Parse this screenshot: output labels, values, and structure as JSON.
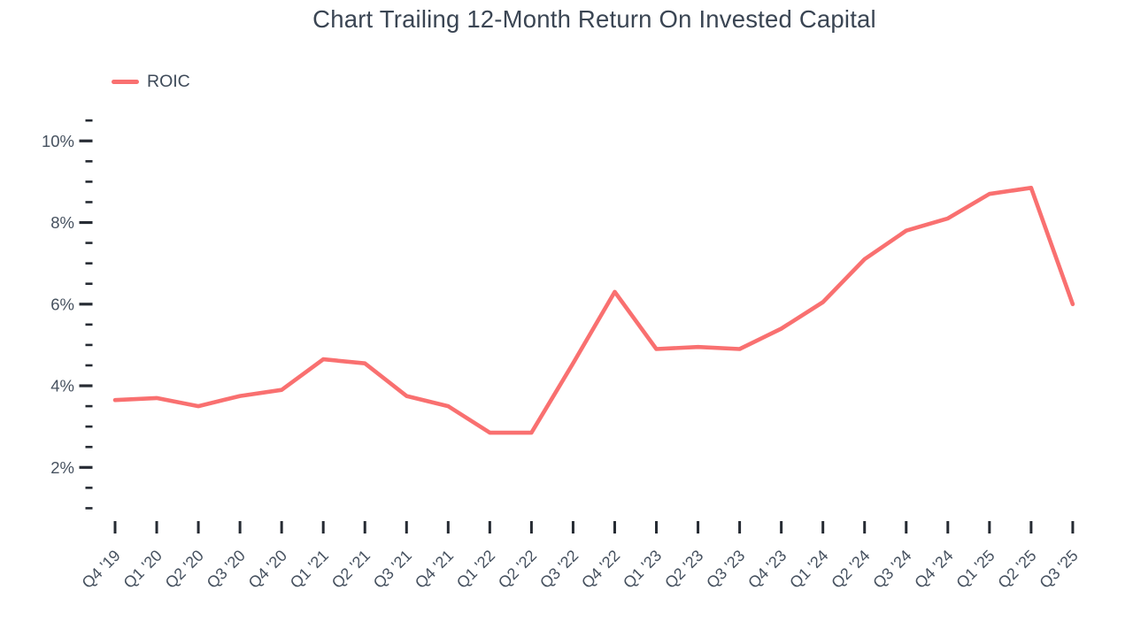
{
  "title": "Chart Trailing 12-Month Return On Invested Capital",
  "legend": {
    "items": [
      {
        "label": "ROIC",
        "color": "#F97070"
      }
    ]
  },
  "colors": {
    "line": "#F97070",
    "title_text": "#3a4553",
    "axis_label_text": "#46515f",
    "tick_mark": "#262b33",
    "background": "#ffffff"
  },
  "chart_data": {
    "type": "line",
    "title": "Chart Trailing 12-Month Return On Invested Capital",
    "xlabel": "",
    "ylabel": "",
    "categories": [
      "Q4 '19",
      "Q1 '20",
      "Q2 '20",
      "Q3 '20",
      "Q4 '20",
      "Q1 '21",
      "Q2 '21",
      "Q3 '21",
      "Q4 '21",
      "Q1 '22",
      "Q2 '22",
      "Q3 '22",
      "Q4 '22",
      "Q1 '23",
      "Q2 '23",
      "Q3 '23",
      "Q4 '23",
      "Q1 '24",
      "Q2 '24",
      "Q3 '24",
      "Q4 '24",
      "Q1 '25",
      "Q2 '25",
      "Q3 '25"
    ],
    "series": [
      {
        "name": "ROIC",
        "color": "#F97070",
        "values": [
          3.65,
          3.7,
          3.5,
          3.75,
          3.9,
          4.65,
          4.55,
          3.75,
          3.5,
          2.85,
          2.85,
          4.55,
          6.3,
          4.9,
          4.95,
          4.9,
          5.4,
          6.05,
          7.1,
          7.8,
          8.1,
          8.7,
          8.85,
          6.0
        ]
      }
    ],
    "y_major_ticks": [
      2,
      4,
      6,
      8,
      10
    ],
    "y_major_tick_labels": [
      "2%",
      "4%",
      "6%",
      "8%",
      "10%"
    ],
    "y_minor_step": 0.5,
    "ylim": [
      1.0,
      10.5
    ],
    "grid": false,
    "legend_position": "top-left",
    "x_tick_label_rotation": -45
  }
}
